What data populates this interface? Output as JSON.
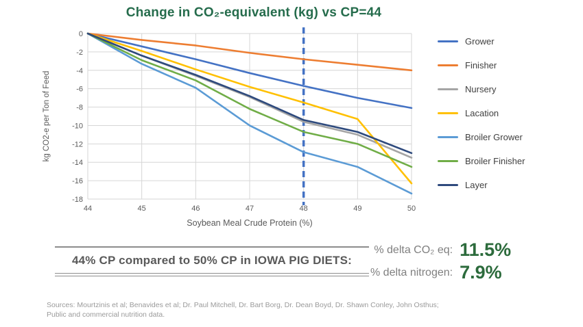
{
  "title": "Change in CO₂-equivalent (kg) vs CP=44",
  "chart_data": {
    "type": "line",
    "x": [
      44,
      45,
      46,
      47,
      48,
      49,
      50
    ],
    "xticks": [
      44,
      45,
      46,
      47,
      48,
      49,
      50
    ],
    "yticks": [
      0,
      -2,
      -4,
      -6,
      -8,
      -10,
      -12,
      -14,
      -16,
      -18
    ],
    "xlim": [
      44,
      50
    ],
    "ylim": [
      -18,
      0
    ],
    "grid": true,
    "legend_position": "right",
    "xlabel": "Soybean Meal Crude Protein (%)",
    "ylabel": "kg CO2-e per Ton of Feed",
    "reference_line": {
      "x": 48,
      "color": "#4472C4",
      "style": "dashed"
    },
    "series": [
      {
        "name": "Grower",
        "color": "#4472C4",
        "values": [
          0,
          -1.4,
          -2.8,
          -4.3,
          -5.7,
          -7.0,
          -8.1
        ]
      },
      {
        "name": "Finisher",
        "color": "#ED7D31",
        "values": [
          0,
          -0.7,
          -1.3,
          -2.1,
          -2.8,
          -3.4,
          -4.0
        ]
      },
      {
        "name": "Nursery",
        "color": "#A5A5A5",
        "values": [
          0,
          -2.4,
          -4.6,
          -6.9,
          -9.6,
          -11.0,
          -13.5
        ]
      },
      {
        "name": "Lacation",
        "color": "#FFC000",
        "values": [
          0,
          -1.9,
          -3.9,
          -5.8,
          -7.5,
          -9.3,
          -16.3
        ]
      },
      {
        "name": "Broiler Grower",
        "color": "#5B9BD5",
        "values": [
          0,
          -3.3,
          -5.9,
          -10.0,
          -12.9,
          -14.5,
          -17.4
        ]
      },
      {
        "name": "Broiler Finisher",
        "color": "#70AD47",
        "values": [
          0,
          -2.9,
          -5.1,
          -8.2,
          -10.7,
          -12.0,
          -14.5
        ]
      },
      {
        "name": "Layer",
        "color": "#2E4A7D",
        "values": [
          0,
          -2.4,
          -4.5,
          -6.8,
          -9.4,
          -10.7,
          -13.0
        ]
      }
    ]
  },
  "comparison": {
    "statement": "44% CP compared to 50% CP in IOWA PIG DIETS:",
    "metrics": [
      {
        "label": "% delta CO₂ eq:",
        "value": "11.5%"
      },
      {
        "label": "% delta nitrogen:",
        "value": "7.9%"
      }
    ]
  },
  "sources_line1": "Sources: Mourtzinis et al; Benavides et al; Dr. Paul Mitchell, Dr. Bart Borg, Dr. Dean Boyd, Dr. Shawn Conley, John Osthus;",
  "sources_line2": "Public and commercial nutrition data.",
  "colors": {
    "title_green": "#256C4C",
    "value_green": "#2C6B3C",
    "grid_gray": "#D6D6D6",
    "tick_text": "#595959",
    "rule_gray": "#8C8C8C"
  }
}
